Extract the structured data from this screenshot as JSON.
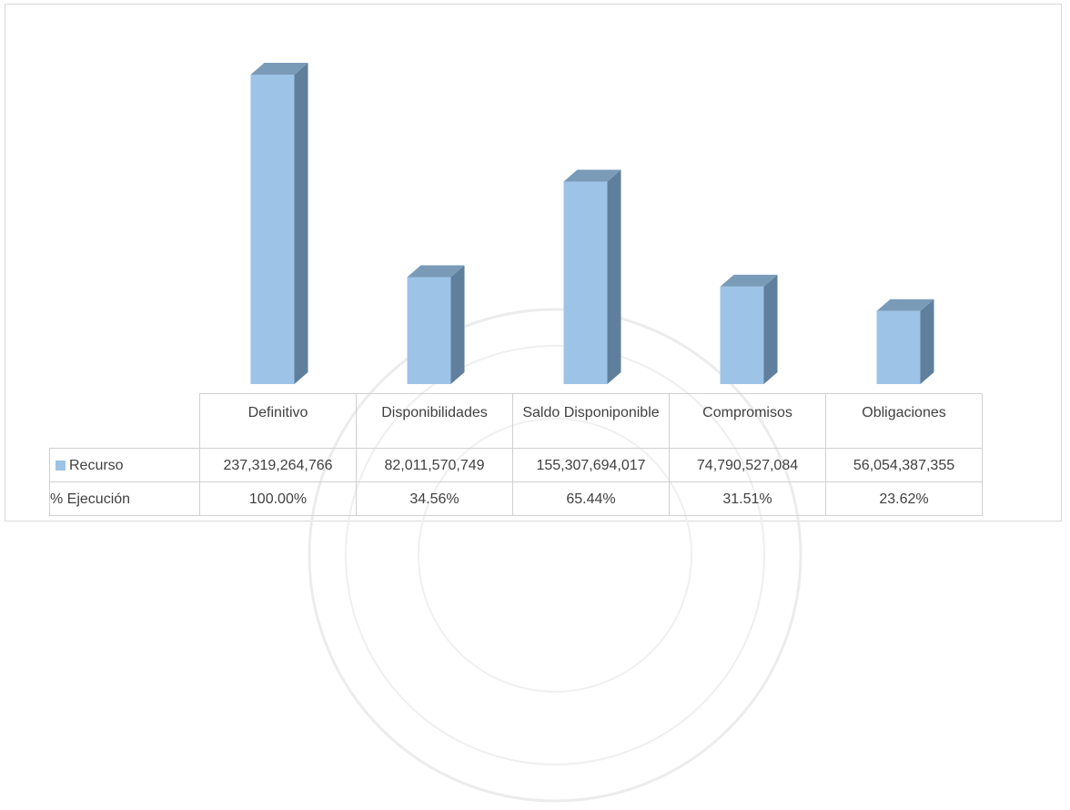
{
  "chart_data": {
    "type": "bar",
    "categories": [
      "Definitivo",
      "Disponibilidades",
      "Saldo Disponiponible",
      "Compromisos",
      "Obligaciones"
    ],
    "series": [
      {
        "name": "Recurso",
        "values": [
          237319264766,
          82011570749,
          155307694017,
          74790527084,
          56054387355
        ]
      }
    ],
    "table": {
      "rows": [
        {
          "label": "Recurso",
          "cells": [
            "237,319,264,766",
            "82,011,570,749",
            "155,307,694,017",
            "74,790,527,084",
            "56,054,387,355"
          ]
        },
        {
          "label": "% Ejecución",
          "cells": [
            "100.00%",
            "34.56%",
            "65.44%",
            "31.51%",
            "23.62%"
          ]
        }
      ]
    },
    "colors": {
      "bar_front": "#9dc3e6",
      "bar_side": "#5f7f9c",
      "bar_top": "#7a9bb8"
    },
    "style": "3d-column-with-data-table",
    "grid": false,
    "legend": "data-table-row"
  }
}
